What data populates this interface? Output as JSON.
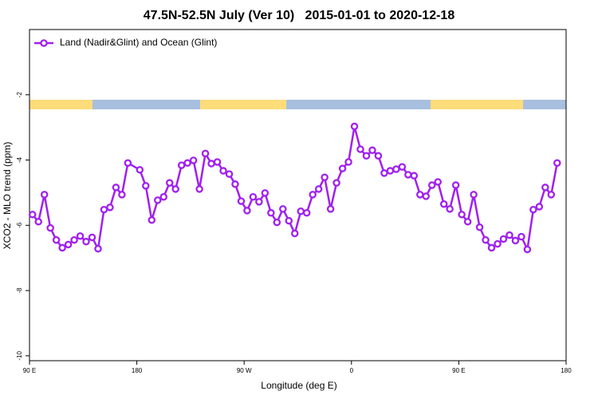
{
  "chart_data": {
    "type": "line",
    "title": "47.5N-52.5N July (Ver 10)   2015-01-01 to 2020-12-18",
    "xlabel": "Longitude (deg E)",
    "ylabel": "XCO2 - MLO trend (ppm)",
    "xlim": [
      90,
      540
    ],
    "xticks": [
      {
        "value": 90,
        "label": "90 E"
      },
      180,
      {
        "value": 270,
        "label": "90 W"
      },
      {
        "value": 360,
        "label": "0"
      },
      {
        "value": 450,
        "label": "90 E"
      },
      {
        "value": 540,
        "label": "180"
      }
    ],
    "ylim": [
      -10.15,
      0
    ],
    "yticks": [
      -10,
      -8,
      -6,
      -4,
      -2
    ],
    "legend": "top-left",
    "series": [
      {
        "name": "Land (Nadir&Glint) and Ocean (Glint)",
        "color": "#a020f0",
        "x": [
          92.5,
          97.5,
          102.5,
          107.5,
          112.5,
          117.5,
          122.5,
          127.5,
          132.5,
          137.5,
          142.5,
          147.5,
          152.5,
          157.5,
          162.5,
          167.5,
          172.5,
          182.5,
          187.5,
          192.5,
          197.5,
          202.5,
          207.5,
          212.5,
          217.5,
          222.5,
          227.5,
          232.5,
          237.5,
          242.5,
          247.5,
          252.5,
          257.5,
          262.5,
          267.5,
          272.5,
          277.5,
          282.5,
          287.5,
          292.5,
          297.5,
          302.5,
          307.5,
          312.5,
          317.5,
          322.5,
          327.5,
          332.5,
          337.5,
          342.5,
          347.5,
          352.5,
          357.5,
          362.5,
          367.5,
          372.5,
          377.5,
          382.5,
          387.5,
          392.5,
          397.5,
          402.5,
          407.5,
          412.5,
          417.5,
          422.5,
          427.5,
          432.5,
          437.5,
          442.5,
          447.5,
          452.5,
          457.5,
          462.5,
          467.5,
          472.5,
          477.5,
          482.5,
          487.5,
          492.5,
          497.5,
          502.5,
          507.5,
          512.5,
          517.5,
          522.5,
          527.5,
          532.5
        ],
        "values": [
          -5.67,
          -5.89,
          -5.06,
          -6.08,
          -6.45,
          -6.69,
          -6.59,
          -6.45,
          -6.33,
          -6.5,
          -6.37,
          -6.72,
          -5.52,
          -5.45,
          -4.84,
          -5.06,
          -4.09,
          -4.3,
          -4.79,
          -5.84,
          -5.23,
          -5.13,
          -4.7,
          -4.89,
          -4.16,
          -4.09,
          -4.01,
          -4.89,
          -3.8,
          -4.11,
          -4.06,
          -4.33,
          -4.43,
          -4.74,
          -5.26,
          -5.55,
          -5.13,
          -5.28,
          -5.01,
          -5.62,
          -5.91,
          -5.5,
          -5.86,
          -6.25,
          -5.57,
          -5.62,
          -5.06,
          -4.89,
          -4.53,
          -5.5,
          -4.7,
          -4.26,
          -4.06,
          -2.97,
          -3.67,
          -3.87,
          -3.7,
          -3.87,
          -4.4,
          -4.33,
          -4.28,
          -4.21,
          -4.45,
          -4.48,
          -5.06,
          -5.11,
          -4.77,
          -4.67,
          -5.35,
          -5.5,
          -4.77,
          -5.67,
          -5.89,
          -5.06,
          -6.06,
          -6.45,
          -6.69,
          -6.57,
          -6.42,
          -6.3,
          -6.47,
          -6.35,
          -6.74,
          -5.52,
          -5.43,
          -4.84,
          -5.06,
          -4.09
        ]
      }
    ]
  }
}
